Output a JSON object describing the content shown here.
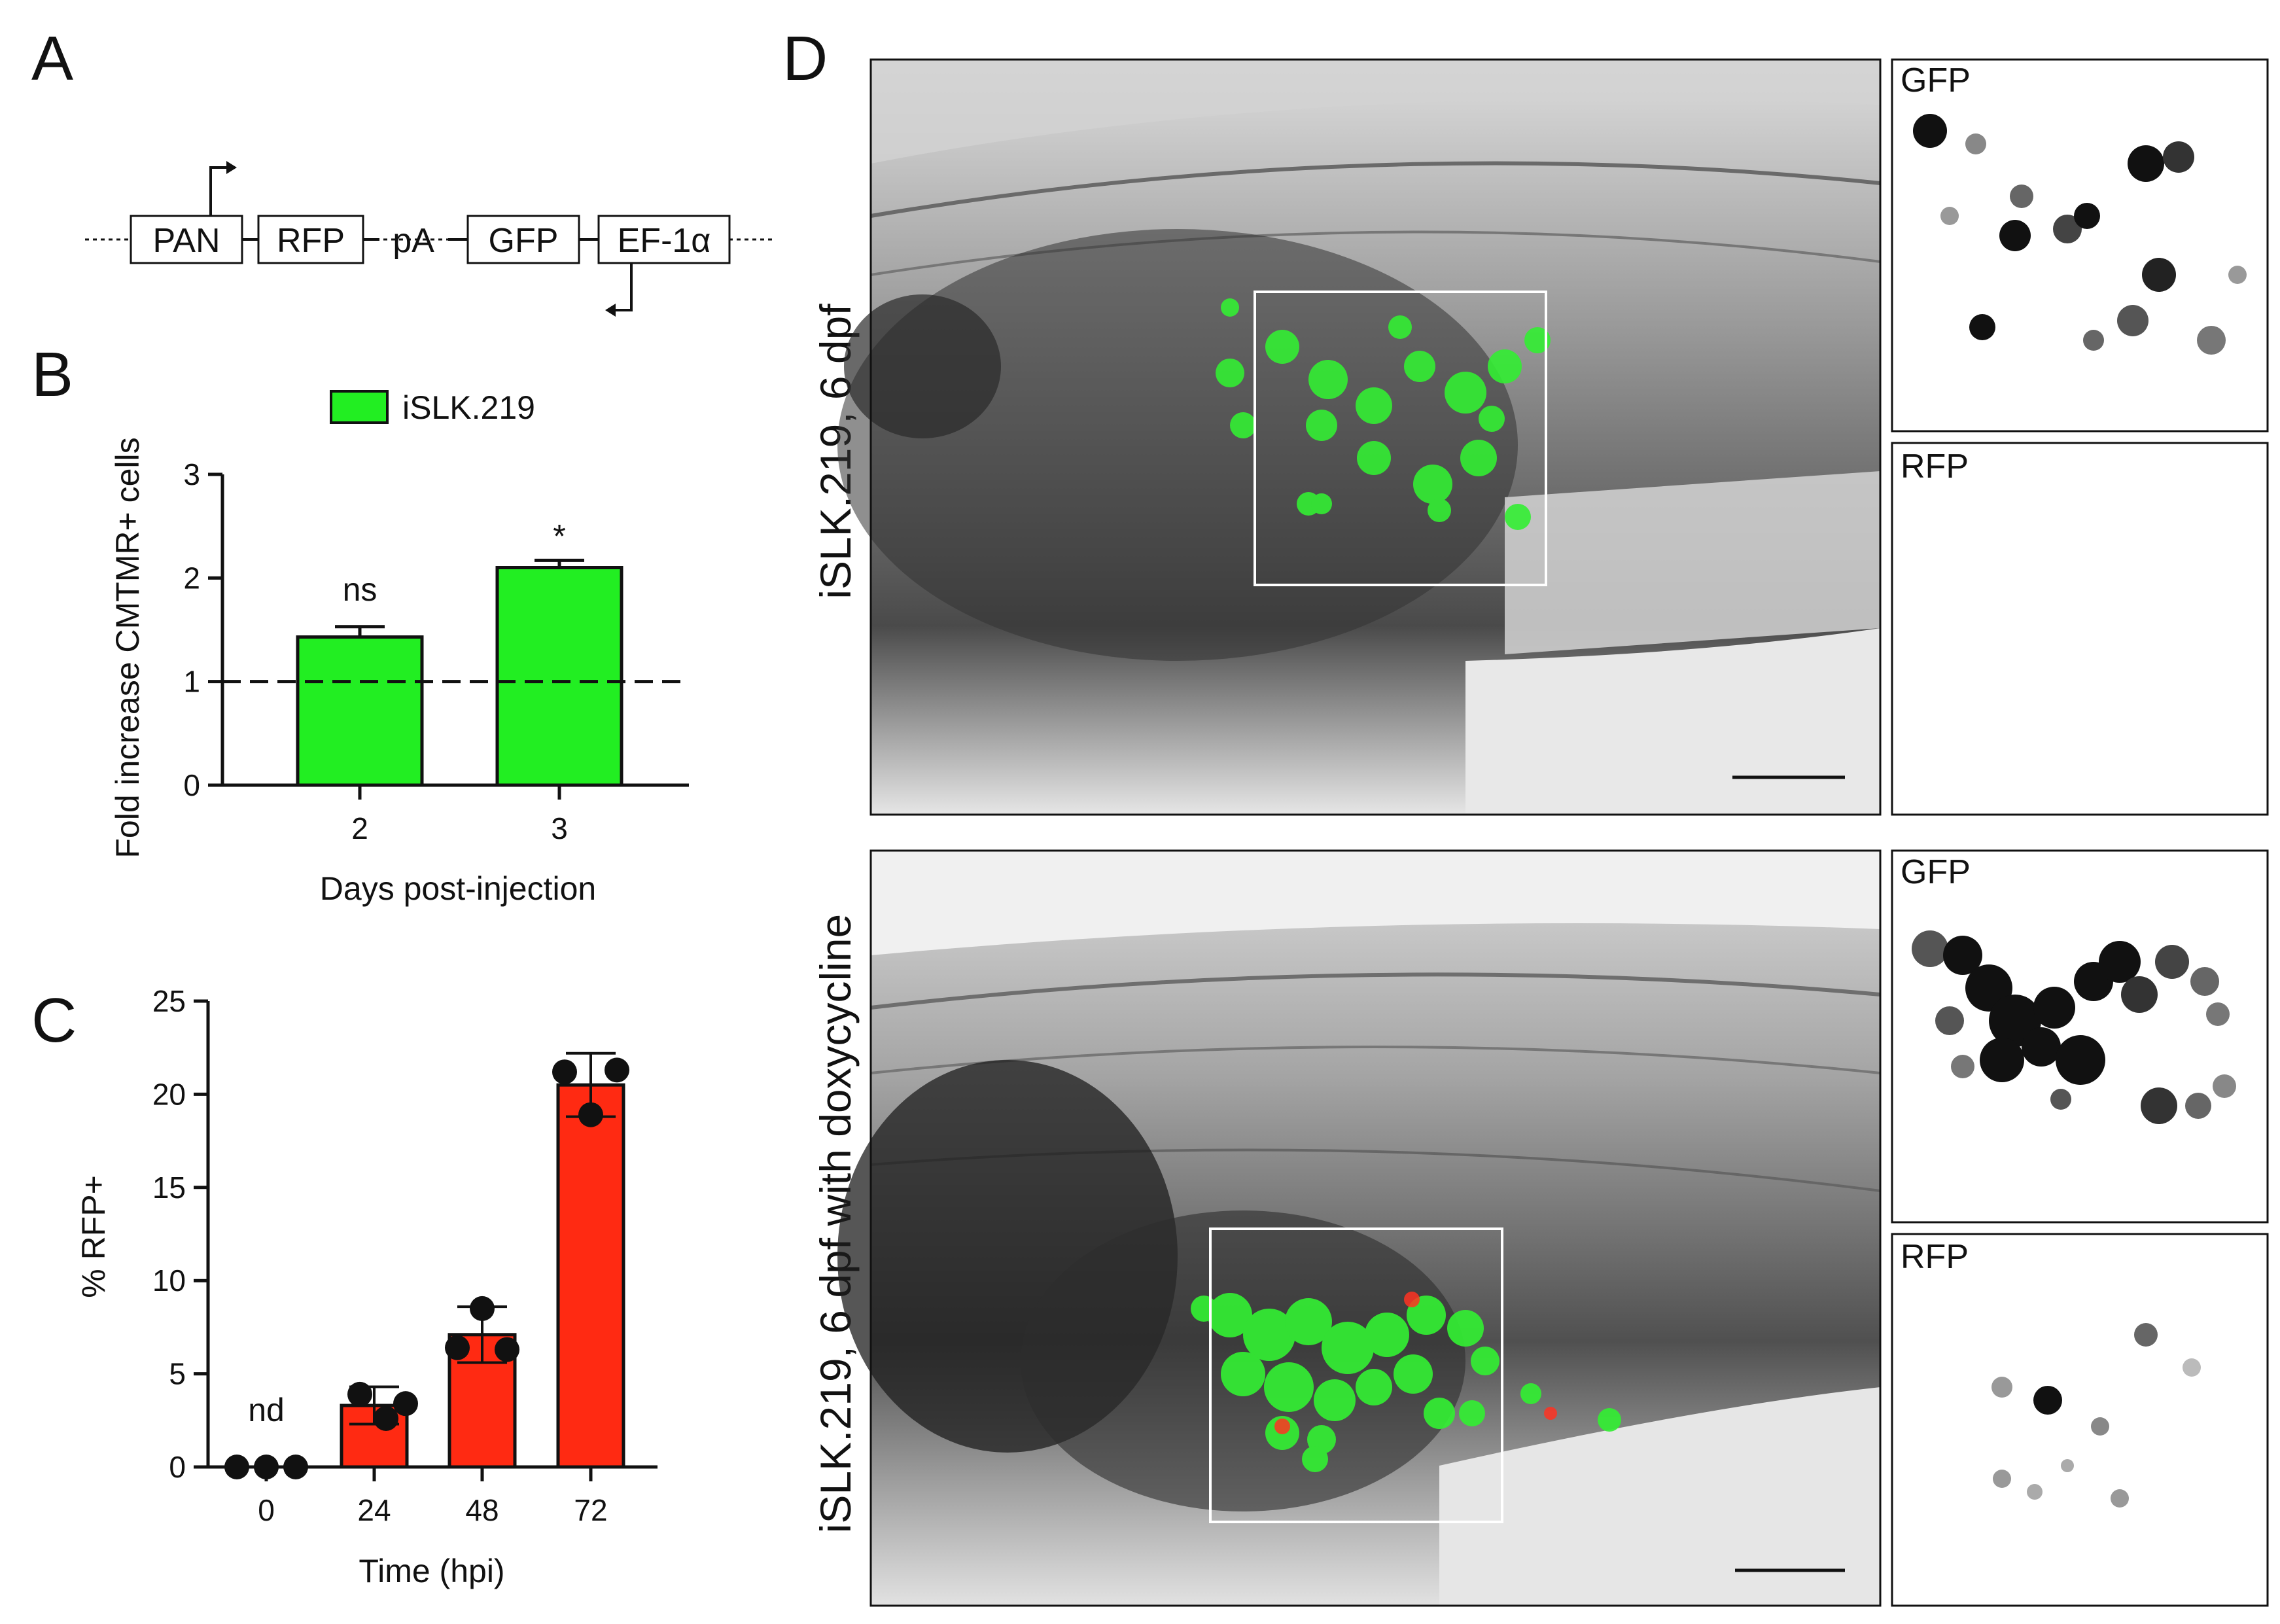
{
  "panels": {
    "a": {
      "letter": "A",
      "construct": {
        "parts": [
          "PAN",
          "RFP",
          "pA",
          "GFP",
          "EF-1α"
        ]
      }
    },
    "b": {
      "letter": "B"
    },
    "c": {
      "letter": "C"
    },
    "d": {
      "letter": "D",
      "top_label": "iSLK.219, 6 dpf",
      "bottom_label": "iSLK.219, 6 dpf with doxycycline",
      "insets": {
        "top_gfp": "GFP",
        "top_rfp": "RFP",
        "bottom_gfp": "GFP",
        "bottom_rfp": "RFP"
      }
    }
  },
  "colors": {
    "green_bar": "#22ee22",
    "red_bar": "#ff2a12",
    "axis": "#111111"
  },
  "chart_data": [
    {
      "id": "B",
      "type": "bar",
      "ylabel": "Fold increase CMTMR+ cells",
      "xlabel": "Days post-injection",
      "legend": "iSLK.219",
      "categories": [
        "2",
        "3"
      ],
      "values": [
        1.43,
        2.1
      ],
      "errors": [
        0.1,
        0.07
      ],
      "annotations": [
        "ns",
        "*"
      ],
      "ylim": [
        0,
        3
      ],
      "yticks": [
        "0",
        "1",
        "2",
        "3"
      ],
      "reference_line": 1
    },
    {
      "id": "C",
      "type": "bar",
      "ylabel": "% RFP+",
      "xlabel": "Time (hpi)",
      "categories": [
        "0",
        "24",
        "48",
        "72"
      ],
      "values": [
        0,
        3.3,
        7.1,
        20.5
      ],
      "errors": [
        0,
        1.0,
        1.5,
        1.7
      ],
      "points": [
        [
          0,
          0,
          0
        ],
        [
          3.9,
          2.6,
          3.4
        ],
        [
          8.5,
          6.4,
          6.3
        ],
        [
          21.2,
          21.3,
          18.9
        ]
      ],
      "annotations": [
        "nd",
        "",
        "",
        ""
      ],
      "ylim": [
        0,
        25
      ],
      "yticks": [
        "0",
        "5",
        "10",
        "15",
        "20",
        "25"
      ]
    }
  ]
}
